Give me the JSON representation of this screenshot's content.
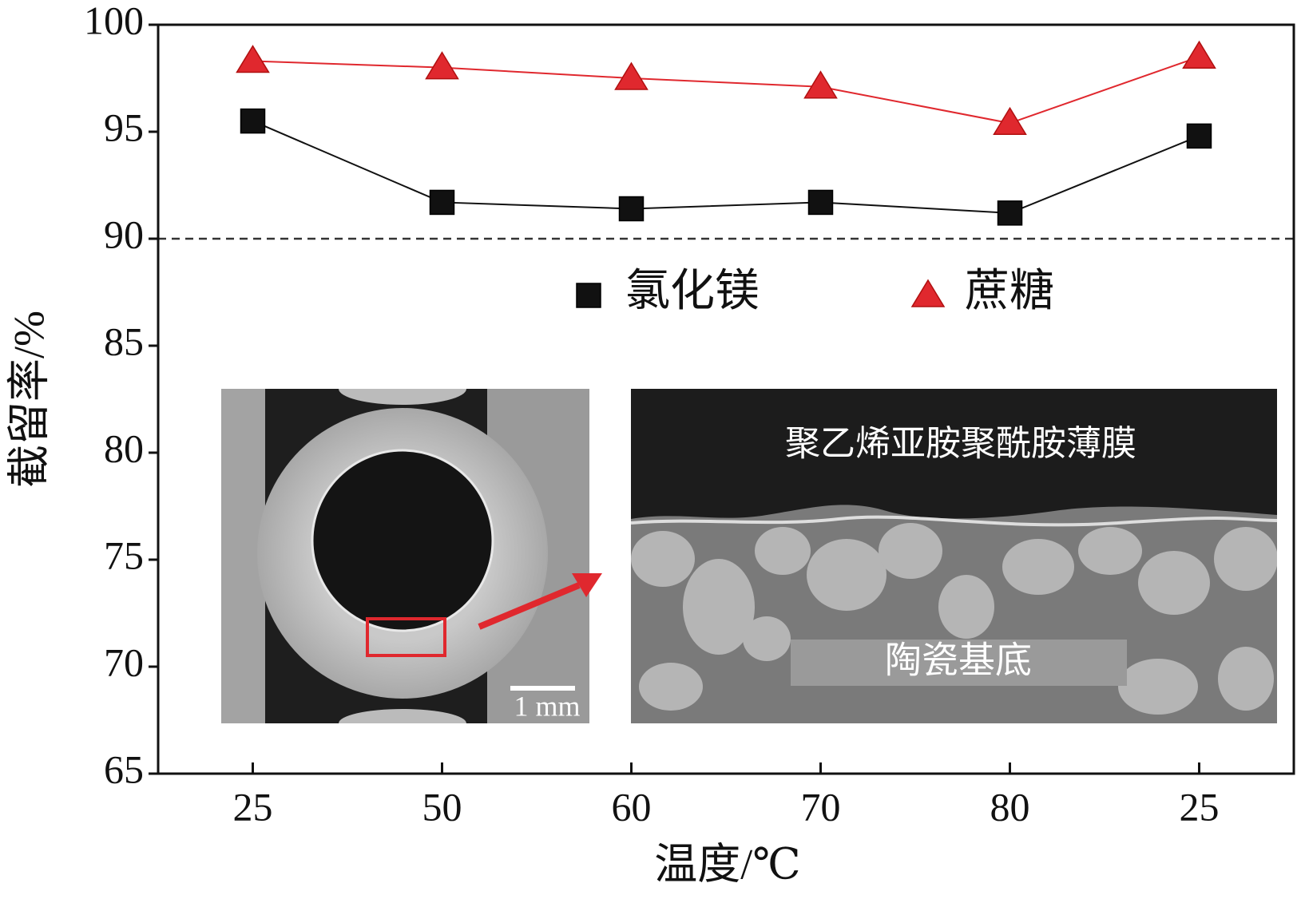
{
  "chart_data": {
    "type": "line",
    "x_label": "温度/℃",
    "y_label": "截留率/%",
    "categories": [
      "25",
      "50",
      "60",
      "70",
      "80",
      "25"
    ],
    "series": [
      {
        "name": "氯化镁",
        "color": "#111111",
        "marker": "square",
        "values": [
          95.5,
          91.7,
          91.4,
          91.7,
          91.2,
          94.8
        ]
      },
      {
        "name": "蔗糖",
        "color": "#e0282e",
        "marker": "triangle",
        "values": [
          98.3,
          98.0,
          97.5,
          97.1,
          95.4,
          98.5
        ]
      }
    ],
    "ylim": [
      65,
      100
    ],
    "yticks": [
      65,
      70,
      75,
      80,
      85,
      90,
      95,
      100
    ],
    "reference_line": 90,
    "annotations": [
      "聚乙烯亚胺聚酰胺薄膜",
      "陶瓷基底",
      "1 mm"
    ]
  }
}
